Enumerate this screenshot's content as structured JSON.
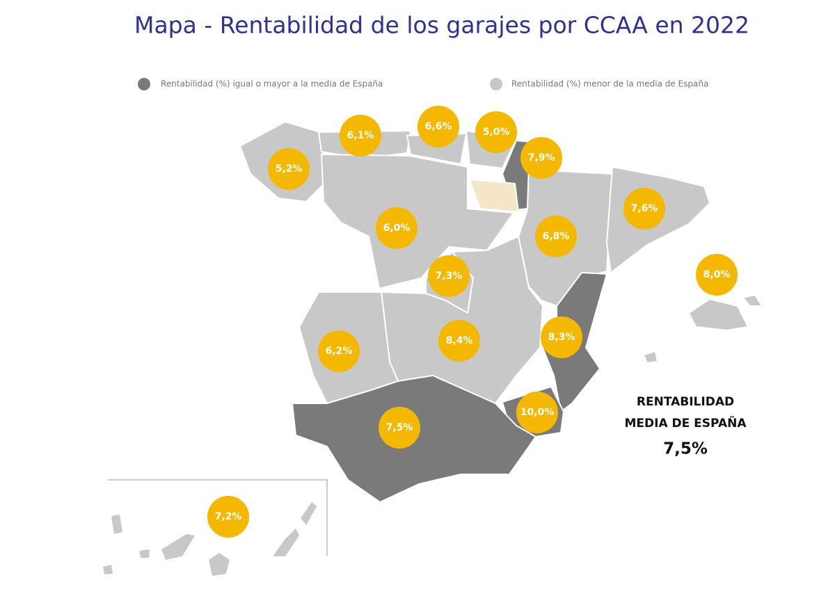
{
  "title": "Mapa - Rentabilidad de los garajes por CCAA en 2022",
  "legend": [
    "Rentabilidad (%) igual o mayor a la media de España",
    "Rentabilidad (%) menor de la media de España"
  ],
  "labels": [
    "5,2%",
    "6,1%",
    "6,6%",
    "5,0%",
    "7,9%",
    "6,0%",
    "6,8%",
    "7,6%",
    "8,0%",
    "7,3%",
    "6,2%",
    "8,4%",
    "8,3%",
    "10,0%",
    "7,5%",
    "7,2%"
  ],
  "summary": {
    "heading": [
      "RENTABILIDAD",
      "MEDIA DE ESPAÑA"
    ],
    "value": "7,5%"
  }
}
